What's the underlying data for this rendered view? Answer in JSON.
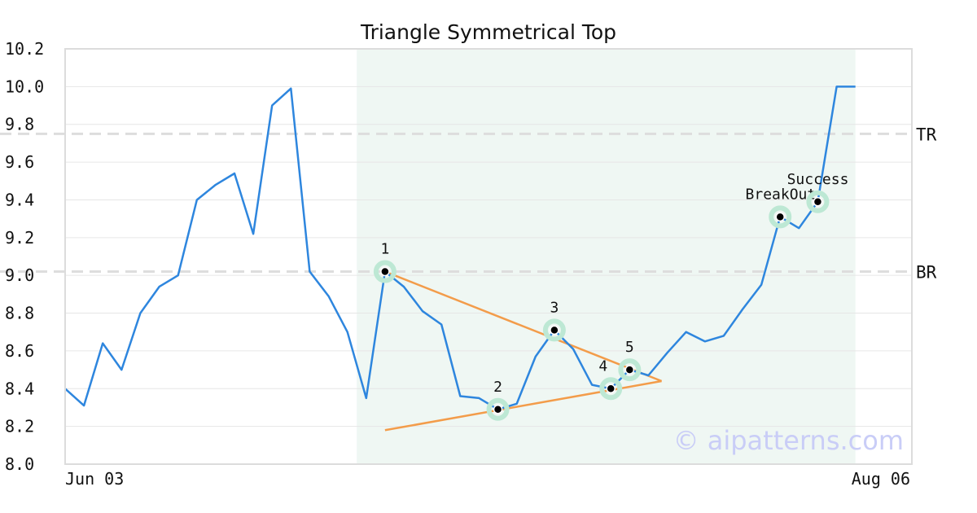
{
  "chart_data": {
    "type": "line",
    "title": "Triangle Symmetrical Top",
    "xlabel": "",
    "ylabel": "",
    "ylim": [
      8.0,
      10.2
    ],
    "y_ticks": [
      "8.0",
      "8.2",
      "8.4",
      "8.6",
      "8.8",
      "9.0",
      "9.2",
      "9.4",
      "9.6",
      "9.8",
      "10.0",
      "10.2"
    ],
    "x_tick_labels": [
      "Jun 03",
      "Aug 06"
    ],
    "grid": true,
    "series": [
      {
        "name": "",
        "color": "#2e86de",
        "values": [
          8.4,
          8.31,
          8.64,
          8.5,
          8.8,
          8.94,
          9.0,
          9.4,
          9.48,
          9.54,
          9.22,
          9.9,
          9.99,
          9.02,
          8.89,
          8.7,
          8.35,
          9.02,
          8.94,
          8.81,
          8.74,
          8.36,
          8.35,
          8.29,
          8.32,
          8.57,
          8.71,
          8.61,
          8.42,
          8.4,
          8.5,
          8.47,
          8.59,
          8.7,
          8.65,
          8.68,
          8.82,
          8.95,
          9.31,
          9.25,
          9.39,
          10.0,
          10.0
        ]
      }
    ],
    "highlight_range": {
      "start_index": 15.5,
      "end_index": 42,
      "color": "#eff7f3"
    },
    "reference_lines": [
      {
        "label": "TR",
        "value": 9.75
      },
      {
        "label": "BR",
        "value": 9.02
      }
    ],
    "pattern_points": [
      {
        "label": "1",
        "index": 17,
        "value": 9.02
      },
      {
        "label": "2",
        "index": 23,
        "value": 8.29
      },
      {
        "label": "3",
        "index": 26,
        "value": 8.71
      },
      {
        "label": "4",
        "index": 29,
        "value": 8.4
      },
      {
        "label": "5",
        "index": 30,
        "value": 8.5
      },
      {
        "label": "BreakOut",
        "index": 38,
        "value": 9.31
      },
      {
        "label": "Success",
        "index": 40,
        "value": 9.39
      }
    ],
    "trend_lines": [
      {
        "name": "upper",
        "color": "#f39c4a",
        "points": [
          [
            17,
            9.02
          ],
          [
            31.7,
            8.44
          ]
        ]
      },
      {
        "name": "lower",
        "color": "#f39c4a",
        "points": [
          [
            17,
            8.18
          ],
          [
            31.7,
            8.44
          ]
        ]
      }
    ],
    "watermark": "© aipatterns.com"
  }
}
